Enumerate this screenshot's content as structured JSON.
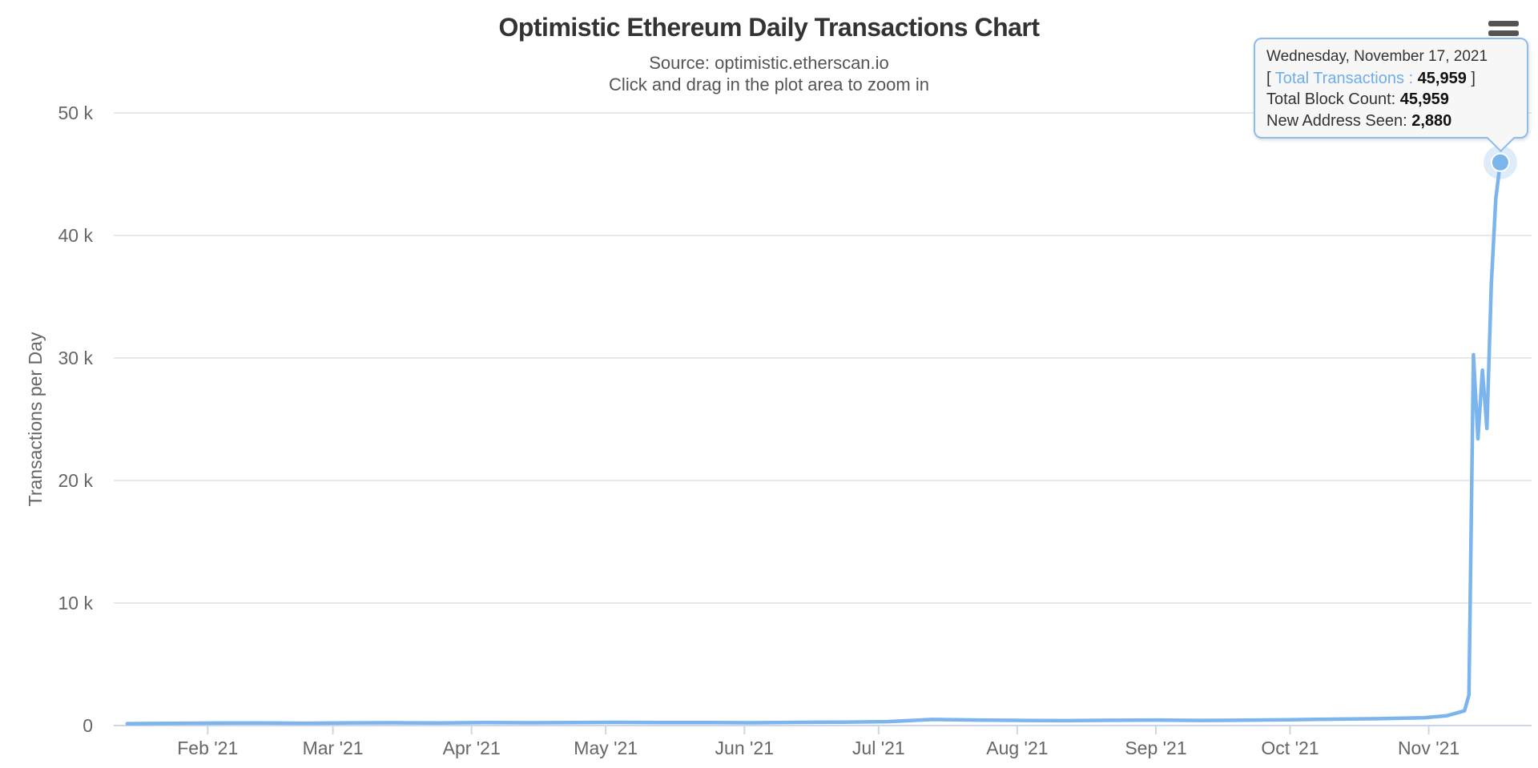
{
  "header": {
    "title": "Optimistic Ethereum Daily Transactions Chart",
    "subtitle_source": "Source: optimistic.etherscan.io",
    "subtitle_hint": "Click and drag in the plot area to zoom in"
  },
  "context_menu": {
    "icon": "hamburger-icon"
  },
  "tooltip": {
    "date_header": "Wednesday, November 17, 2021",
    "bracket_open": "[ ",
    "series_label": "Total Transactions",
    "separator": " :  ",
    "total_transactions_value": "45,959",
    "bracket_close": " ]",
    "block_count_label": "Total Block Count: ",
    "block_count_value": "45,959",
    "new_address_label": "New Address Seen: ",
    "new_address_value": "2,880"
  },
  "colors": {
    "accent": "#7cb5ec",
    "grid": "#e9e9e9",
    "axis": "#ccd6eb",
    "label": "#666666",
    "title": "#333333",
    "subtitle": "#555555",
    "tooltip_bg": "#f7f7f7",
    "tooltip_border": "#8bbcec",
    "halo": "rgba(124,181,236,0.25)"
  },
  "chart_data": {
    "type": "line",
    "title": "Optimistic Ethereum Daily Transactions Chart",
    "subtitle": [
      "Source: optimistic.etherscan.io",
      "Click and drag in the plot area to zoom in"
    ],
    "xlabel": "",
    "ylabel": "Transactions per Day",
    "ylim": [
      0,
      50000
    ],
    "grid": true,
    "legend": false,
    "xrange": [
      "2021-01-11",
      "2021-11-24"
    ],
    "yticks": [
      {
        "value": 0,
        "label": "0"
      },
      {
        "value": 10000,
        "label": "10 k"
      },
      {
        "value": 20000,
        "label": "20 k"
      },
      {
        "value": 30000,
        "label": "30 k"
      },
      {
        "value": 40000,
        "label": "40 k"
      },
      {
        "value": 50000,
        "label": "50 k"
      }
    ],
    "xticks": [
      {
        "date": "2021-02-01",
        "label": "Feb '21"
      },
      {
        "date": "2021-03-01",
        "label": "Mar '21"
      },
      {
        "date": "2021-04-01",
        "label": "Apr '21"
      },
      {
        "date": "2021-05-01",
        "label": "May '21"
      },
      {
        "date": "2021-06-01",
        "label": "Jun '21"
      },
      {
        "date": "2021-07-01",
        "label": "Jul '21"
      },
      {
        "date": "2021-08-01",
        "label": "Aug '21"
      },
      {
        "date": "2021-09-01",
        "label": "Sep '21"
      },
      {
        "date": "2021-10-01",
        "label": "Oct '21"
      },
      {
        "date": "2021-11-01",
        "label": "Nov '21"
      }
    ],
    "series": [
      {
        "name": "Total Transactions",
        "color": "#7cb5ec",
        "points": [
          [
            "2021-01-14",
            160
          ],
          [
            "2021-01-24",
            180
          ],
          [
            "2021-02-03",
            200
          ],
          [
            "2021-02-13",
            210
          ],
          [
            "2021-02-23",
            190
          ],
          [
            "2021-03-05",
            220
          ],
          [
            "2021-03-15",
            230
          ],
          [
            "2021-03-25",
            210
          ],
          [
            "2021-04-04",
            240
          ],
          [
            "2021-04-14",
            230
          ],
          [
            "2021-04-24",
            250
          ],
          [
            "2021-05-04",
            260
          ],
          [
            "2021-05-14",
            240
          ],
          [
            "2021-05-24",
            250
          ],
          [
            "2021-06-03",
            230
          ],
          [
            "2021-06-13",
            260
          ],
          [
            "2021-06-23",
            280
          ],
          [
            "2021-07-03",
            320
          ],
          [
            "2021-07-13",
            500
          ],
          [
            "2021-07-23",
            450
          ],
          [
            "2021-08-02",
            420
          ],
          [
            "2021-08-12",
            400
          ],
          [
            "2021-08-22",
            430
          ],
          [
            "2021-09-01",
            450
          ],
          [
            "2021-09-11",
            420
          ],
          [
            "2021-09-21",
            440
          ],
          [
            "2021-10-01",
            480
          ],
          [
            "2021-10-11",
            520
          ],
          [
            "2021-10-21",
            560
          ],
          [
            "2021-10-31",
            640
          ],
          [
            "2021-11-05",
            800
          ],
          [
            "2021-11-09",
            1200
          ],
          [
            "2021-11-10",
            2500
          ],
          [
            "2021-11-11",
            30270
          ],
          [
            "2021-11-12",
            23400
          ],
          [
            "2021-11-13",
            29000
          ],
          [
            "2021-11-14",
            24250
          ],
          [
            "2021-11-15",
            36000
          ],
          [
            "2021-11-16",
            43000
          ],
          [
            "2021-11-17",
            45959
          ]
        ]
      }
    ],
    "highlighted_point": {
      "date": "2021-11-17",
      "value": 45959
    }
  }
}
